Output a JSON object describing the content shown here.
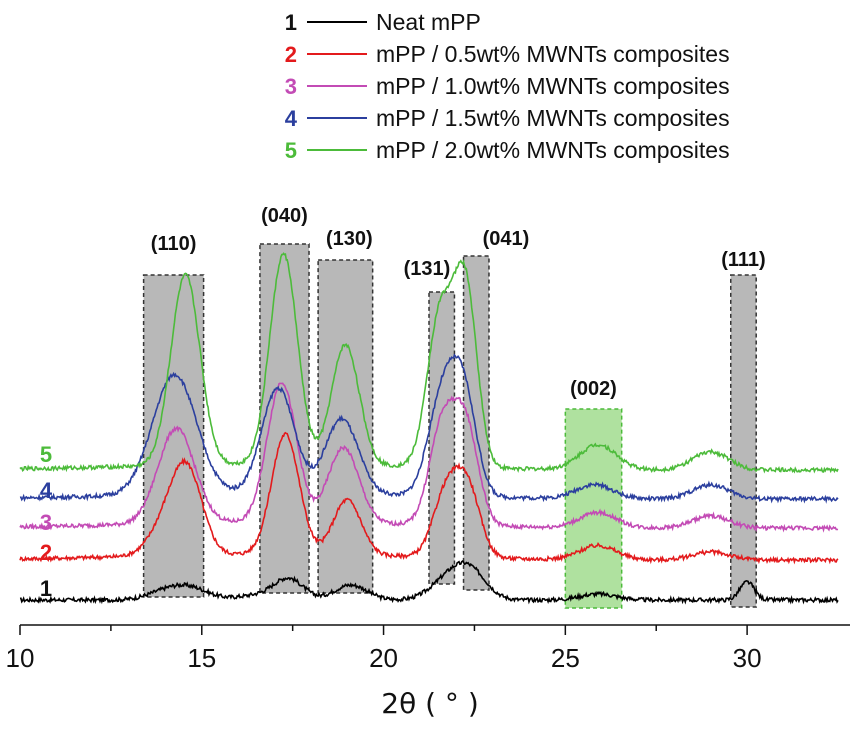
{
  "chart_data": {
    "type": "line",
    "xlabel": "2θ ( ° )",
    "ylabel": "",
    "xlim": [
      10,
      32.5
    ],
    "xticks": [
      "10",
      "15",
      "20",
      "25",
      "30"
    ],
    "y_axis": "intensity (a.u.), unlabeled, curves vertically offset",
    "series": [
      {
        "id": "1",
        "name": "Neat mPP",
        "color": "#000000",
        "baseline": 0,
        "peaks": [
          [
            14.0,
            0.5,
            8
          ],
          [
            14.7,
            0.5,
            11
          ],
          [
            16.6,
            0.6,
            5
          ],
          [
            17.4,
            0.4,
            20
          ],
          [
            19.1,
            0.45,
            15
          ],
          [
            21.8,
            0.5,
            20
          ],
          [
            22.4,
            0.45,
            25
          ],
          [
            25.9,
            0.5,
            6
          ],
          [
            30.0,
            0.2,
            18
          ]
        ]
      },
      {
        "id": "2",
        "name": "mPP / 0.5wt% MWNTs composites",
        "color": "#e31a1c",
        "baseline": 40,
        "peaks": [
          [
            14.2,
            0.5,
            45
          ],
          [
            14.65,
            0.4,
            60
          ],
          [
            17.3,
            0.38,
            120
          ],
          [
            19.0,
            0.38,
            55
          ],
          [
            21.7,
            0.35,
            60
          ],
          [
            22.3,
            0.35,
            70
          ],
          [
            25.9,
            0.5,
            14
          ],
          [
            29.0,
            0.5,
            8
          ]
        ]
      },
      {
        "id": "3",
        "name": "mPP / 1.0wt% MWNTs composites",
        "color": "#c34bb5",
        "baseline": 72,
        "peaks": [
          [
            14.3,
            0.5,
            95
          ],
          [
            17.2,
            0.4,
            140
          ],
          [
            18.9,
            0.42,
            75
          ],
          [
            21.6,
            0.35,
            95
          ],
          [
            22.25,
            0.35,
            100
          ],
          [
            25.9,
            0.5,
            15
          ],
          [
            29.0,
            0.5,
            12
          ]
        ]
      },
      {
        "id": "4",
        "name": "mPP / 1.5wt% MWNTs composites",
        "color": "#2b3f9e",
        "baseline": 101,
        "peaks": [
          [
            14.25,
            0.6,
            120
          ],
          [
            17.1,
            0.45,
            105
          ],
          [
            18.85,
            0.45,
            75
          ],
          [
            21.6,
            0.38,
            95
          ],
          [
            22.2,
            0.35,
            100
          ],
          [
            25.8,
            0.5,
            14
          ],
          [
            29.0,
            0.5,
            14
          ]
        ]
      },
      {
        "id": "5",
        "name": "mPP / 2.0wt% MWNTs composites",
        "color": "#4cbb3a",
        "baseline": 130,
        "peaks": [
          [
            14.55,
            0.4,
            190
          ],
          [
            17.25,
            0.38,
            210
          ],
          [
            18.95,
            0.38,
            120
          ],
          [
            21.55,
            0.35,
            150
          ],
          [
            22.25,
            0.32,
            180
          ],
          [
            25.9,
            0.5,
            25
          ],
          [
            29.0,
            0.5,
            18
          ]
        ]
      }
    ],
    "peak_regions": [
      {
        "label": "(110)",
        "x": [
          13.4,
          15.05
        ]
      },
      {
        "label": "(040)",
        "x": [
          16.6,
          17.95
        ]
      },
      {
        "label": "(130)",
        "x": [
          18.2,
          19.7
        ]
      },
      {
        "label": "(131)",
        "x": [
          21.25,
          21.95
        ]
      },
      {
        "label": "(041)",
        "x": [
          22.2,
          22.9
        ]
      },
      {
        "label": "(002)",
        "x": [
          25.0,
          26.55
        ],
        "highlight": true
      },
      {
        "label": "(111)",
        "x": [
          29.55,
          30.25
        ]
      }
    ],
    "highlight_color": "#31b425",
    "region_color": "#b5b5b5"
  }
}
